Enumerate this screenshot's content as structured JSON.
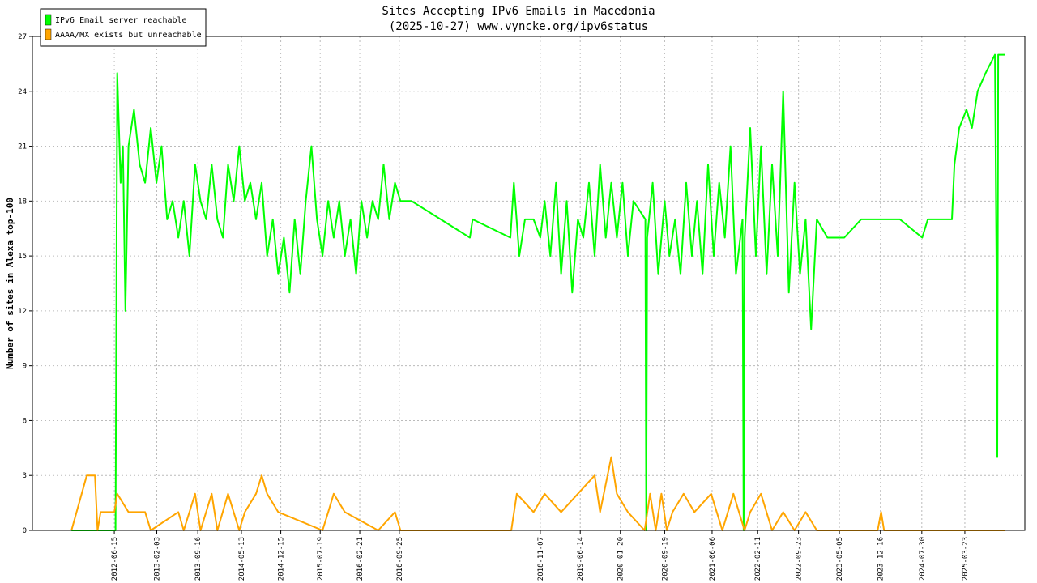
{
  "chart_data": {
    "type": "line",
    "title": "Sites Accepting IPv6 Emails in Macedonia",
    "subtitle": "(2025-10-27) www.vyncke.org/ipv6status",
    "y_label": "Number of sites in Alexa top-100",
    "ylim": [
      0,
      27
    ],
    "yticks": [
      0,
      3,
      6,
      9,
      12,
      15,
      18,
      21,
      24,
      27
    ],
    "xlim": [
      "2011-03-24",
      "2026-02-15"
    ],
    "xticks": [
      "2012-06-15",
      "2013-02-03",
      "2013-09-16",
      "2014-05-13",
      "2014-12-15",
      "2015-07-19",
      "2016-02-21",
      "2016-09-25",
      "2018-11-07",
      "2019-06-14",
      "2020-01-20",
      "2020-09-19",
      "2021-06-06",
      "2022-02-11",
      "2022-09-23",
      "2023-05-05",
      "2023-12-16",
      "2024-07-30",
      "2025-03-23"
    ],
    "grid": true,
    "legend_position": "upper-left",
    "series": [
      {
        "name": "IPv6 Email server reachable",
        "color": "#00ff00",
        "x": [
          "2011-10-24",
          "2012-06-22",
          "2012-07-01",
          "2012-07-20",
          "2012-08-01",
          "2012-08-15",
          "2012-09-01",
          "2012-10-01",
          "2012-11-01",
          "2012-12-01",
          "2013-01-01",
          "2013-02-01",
          "2013-03-01",
          "2013-04-01",
          "2013-05-01",
          "2013-06-01",
          "2013-07-01",
          "2013-08-01",
          "2013-09-01",
          "2013-10-01",
          "2013-11-01",
          "2013-12-01",
          "2014-01-01",
          "2014-02-01",
          "2014-03-01",
          "2014-04-01",
          "2014-05-01",
          "2014-06-01",
          "2014-07-01",
          "2014-08-01",
          "2014-09-01",
          "2014-10-01",
          "2014-11-01",
          "2014-12-01",
          "2015-01-01",
          "2015-02-01",
          "2015-03-01",
          "2015-04-01",
          "2015-05-01",
          "2015-06-01",
          "2015-07-01",
          "2015-08-01",
          "2015-09-01",
          "2015-10-01",
          "2015-11-01",
          "2015-12-01",
          "2016-01-01",
          "2016-02-01",
          "2016-03-01",
          "2016-04-01",
          "2016-05-01",
          "2016-06-01",
          "2016-07-01",
          "2016-08-01",
          "2016-09-01",
          "2016-10-01",
          "2016-12-01",
          "2017-10-17",
          "2017-11-01",
          "2018-05-27",
          "2018-06-15",
          "2018-07-15",
          "2018-08-15",
          "2018-10-01",
          "2018-11-07",
          "2018-12-01",
          "2019-01-01",
          "2019-02-01",
          "2019-03-01",
          "2019-04-01",
          "2019-05-01",
          "2019-06-01",
          "2019-07-01",
          "2019-08-01",
          "2019-09-01",
          "2019-10-01",
          "2019-11-01",
          "2019-12-01",
          "2020-01-01",
          "2020-02-01",
          "2020-03-01",
          "2020-04-01",
          "2020-06-05",
          "2020-06-10",
          "2020-06-15",
          "2020-07-15",
          "2020-08-15",
          "2020-09-19",
          "2020-10-15",
          "2020-11-15",
          "2020-12-15",
          "2021-01-15",
          "2021-02-15",
          "2021-03-15",
          "2021-04-15",
          "2021-05-15",
          "2021-06-15",
          "2021-07-15",
          "2021-08-15",
          "2021-09-15",
          "2021-10-15",
          "2021-11-20",
          "2021-11-26",
          "2021-12-02",
          "2022-01-01",
          "2022-02-01",
          "2022-03-01",
          "2022-04-01",
          "2022-05-01",
          "2022-06-01",
          "2022-07-01",
          "2022-08-01",
          "2022-09-01",
          "2022-10-01",
          "2022-11-01",
          "2022-12-01",
          "2023-01-01",
          "2023-03-01",
          "2023-06-01",
          "2023-09-01",
          "2024-04-01",
          "2024-08-01",
          "2024-09-01",
          "2025-01-11",
          "2025-01-25",
          "2025-02-20",
          "2025-04-01",
          "2025-05-01",
          "2025-06-01",
          "2025-07-15",
          "2025-09-04",
          "2025-09-12",
          "2025-09-17",
          "2025-09-22",
          "2025-10-27"
        ],
        "values": [
          0,
          0,
          25,
          19,
          21,
          12,
          21,
          23,
          20,
          19,
          22,
          19,
          21,
          17,
          18,
          16,
          18,
          15,
          20,
          18,
          17,
          20,
          17,
          16,
          20,
          18,
          21,
          18,
          19,
          17,
          19,
          15,
          17,
          14,
          16,
          13,
          17,
          14,
          18,
          21,
          17,
          15,
          18,
          16,
          18,
          15,
          17,
          14,
          18,
          16,
          18,
          17,
          20,
          17,
          19,
          18,
          18,
          16,
          17,
          16,
          19,
          15,
          17,
          17,
          16,
          18,
          15,
          19,
          14,
          18,
          13,
          17,
          16,
          19,
          15,
          20,
          16,
          19,
          16,
          19,
          15,
          18,
          17,
          0,
          16,
          19,
          14,
          18,
          15,
          17,
          14,
          19,
          15,
          18,
          14,
          20,
          15,
          19,
          16,
          21,
          14,
          17,
          0,
          16,
          22,
          15,
          21,
          14,
          20,
          15,
          24,
          13,
          19,
          14,
          17,
          11,
          17,
          16,
          16,
          17,
          17,
          16,
          17,
          17,
          20,
          22,
          23,
          22,
          24,
          25,
          26,
          15,
          4,
          26,
          26
        ]
      },
      {
        "name": "AAAA/MX exists but unreachable",
        "color": "#ffa500",
        "x": [
          "2011-10-24",
          "2012-01-16",
          "2012-03-01",
          "2012-03-15",
          "2012-04-01",
          "2012-06-15",
          "2012-07-01",
          "2012-09-01",
          "2012-12-01",
          "2013-01-01",
          "2013-06-01",
          "2013-07-01",
          "2013-09-01",
          "2013-10-01",
          "2013-12-01",
          "2014-01-01",
          "2014-03-01",
          "2014-05-01",
          "2014-06-01",
          "2014-08-01",
          "2014-09-01",
          "2014-10-01",
          "2014-12-01",
          "2015-08-01",
          "2015-09-01",
          "2015-10-01",
          "2015-12-01",
          "2016-06-01",
          "2016-09-01",
          "2016-10-01",
          "2018-06-01",
          "2018-07-01",
          "2018-10-01",
          "2018-12-01",
          "2019-03-01",
          "2019-06-01",
          "2019-09-01",
          "2019-10-01",
          "2019-12-01",
          "2020-01-01",
          "2020-03-01",
          "2020-06-01",
          "2020-07-01",
          "2020-08-01",
          "2020-09-01",
          "2020-10-01",
          "2020-11-01",
          "2021-01-01",
          "2021-03-01",
          "2021-06-01",
          "2021-08-01",
          "2021-10-01",
          "2021-12-01",
          "2022-01-01",
          "2022-03-01",
          "2022-05-01",
          "2022-07-01",
          "2022-09-01",
          "2022-11-01",
          "2023-01-01",
          "2023-12-01",
          "2023-12-20",
          "2024-01-05",
          "2025-10-27"
        ],
        "values": [
          0,
          3,
          3,
          0,
          1,
          1,
          2,
          1,
          1,
          0,
          1,
          0,
          2,
          0,
          2,
          0,
          2,
          0,
          1,
          2,
          3,
          2,
          1,
          0,
          1,
          2,
          1,
          0,
          1,
          0,
          0,
          2,
          1,
          2,
          1,
          2,
          3,
          1,
          4,
          2,
          1,
          0,
          2,
          0,
          2,
          0,
          1,
          2,
          1,
          2,
          0,
          2,
          0,
          1,
          2,
          0,
          1,
          0,
          1,
          0,
          0,
          1,
          0,
          0
        ]
      }
    ]
  }
}
